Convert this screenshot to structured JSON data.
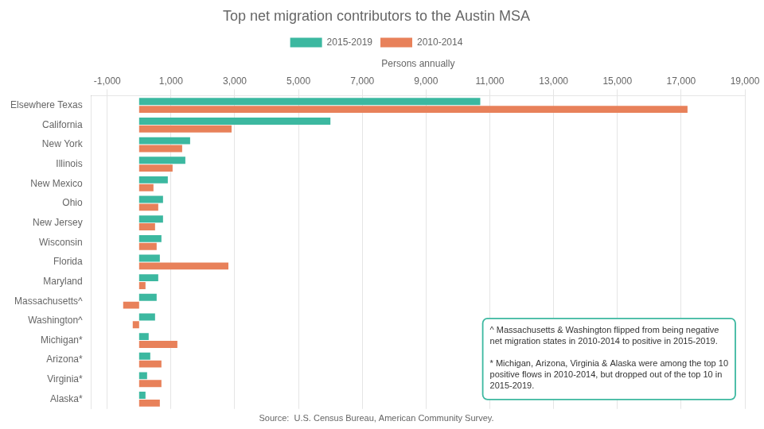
{
  "chart_data": {
    "type": "bar",
    "orientation": "horizontal",
    "title": "Top net migration contributors to the Austin MSA",
    "x_label": "Persons annually",
    "categories": [
      "Elsewhere Texas",
      "California",
      "New York",
      "Illinois",
      "New Mexico",
      "Ohio",
      "New Jersey",
      "Wisconsin",
      "Florida",
      "Maryland",
      "Massachusetts^",
      "Washington^",
      "Michigan*",
      "Arizona*",
      "Virginia*",
      "Alaska*"
    ],
    "series": [
      {
        "name": "2015-2019",
        "color": "#3cb8a0",
        "values": [
          10700,
          6000,
          1600,
          1450,
          900,
          750,
          750,
          700,
          650,
          600,
          550,
          500,
          300,
          350,
          250,
          200
        ]
      },
      {
        "name": "2010-2014",
        "color": "#e8815a",
        "values": [
          17200,
          2900,
          1350,
          1050,
          450,
          600,
          500,
          550,
          2800,
          200,
          -500,
          -200,
          1200,
          700,
          700,
          650
        ]
      }
    ],
    "xlim": [
      -1500,
      19000
    ],
    "xticks": [
      {
        "value": -1000,
        "label": "-1,000"
      },
      {
        "value": 1000,
        "label": "1,000"
      },
      {
        "value": 3000,
        "label": "3,000"
      },
      {
        "value": 5000,
        "label": "5,000"
      },
      {
        "value": 7000,
        "label": "7,000"
      },
      {
        "value": 9000,
        "label": "9,000"
      },
      {
        "value": 11000,
        "label": "11,000"
      },
      {
        "value": 13000,
        "label": "13,000"
      },
      {
        "value": 15000,
        "label": "15,000"
      },
      {
        "value": 17000,
        "label": "17,000"
      },
      {
        "value": 19000,
        "label": "19,000"
      }
    ],
    "grid": true,
    "legend": "top",
    "annotation": "^ Massachusetts & Washington flipped from being negative\nnet migration states in 2010-2014 to positive in 2015-2019.\n\n* Michigan, Arizona, Virginia & Alaska were among the top 10\npositive flows in 2010-2014, but dropped out of the top 10 in\n2015-2019.",
    "source": "Source:  U.S. Census Bureau, American Community Survey."
  }
}
